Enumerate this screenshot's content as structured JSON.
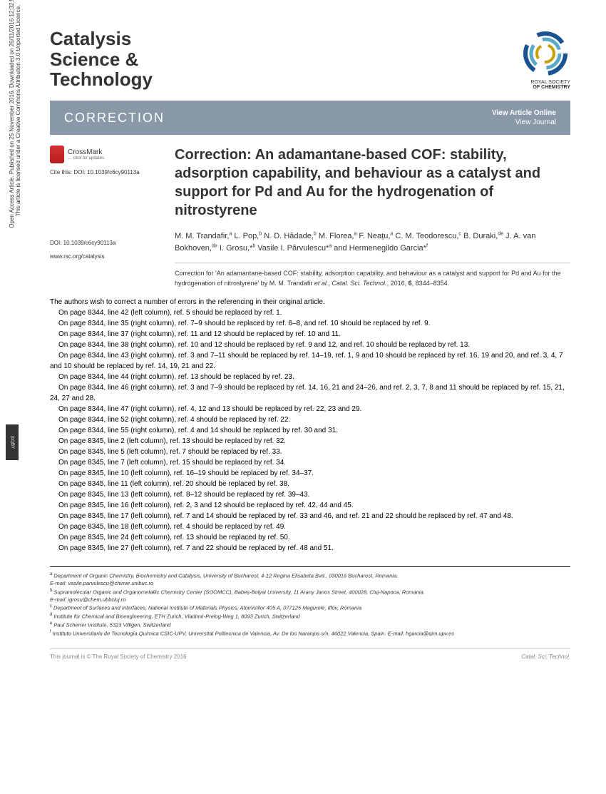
{
  "journal": {
    "title": "Catalysis\nScience &\nTechnology"
  },
  "logo": {
    "line1": "ROYAL SOCIETY",
    "line2": "OF CHEMISTRY"
  },
  "banner": {
    "label": "CORRECTION",
    "link1": "View Article Online",
    "link2": "View Journal"
  },
  "crossmark": {
    "label": "CrossMark",
    "sub": "← click for updates"
  },
  "leftcol": {
    "cite": "Cite this: DOI: 10.1039/c6cy90113a",
    "doi": "DOI: 10.1039/c6cy90113a",
    "website": "www.rsc.org/catalysis"
  },
  "article": {
    "title": "Correction: An adamantane-based COF: stability, adsorption capability, and behaviour as a catalyst and support for Pd and Au for the hydrogenation of nitrostyrene",
    "authors_html": "M. M. Trandafir,<sup>a</sup> L. Pop,<sup>b</sup> N. D. Hădade,<sup>b</sup> M. Florea,<sup>a</sup> F. Neațu,<sup>a</sup> C. M. Teodorescu,<sup>c</sup> B. Duraki,<sup>de</sup> J. A. van Bokhoven,<sup>de</sup> I. Grosu,*<sup>b</sup> Vasile I. Pârvulescu*<sup>a</sup> and Hermenegildo Garcia*<sup>f</sup>",
    "correction_note": "Correction for 'An adamantane-based COF: stability, adsorption capability, and behaviour as a catalyst and support for Pd and Au for the hydrogenation of nitrostyrene' by M. M. Trandafir <em>et al.</em>, <em>Catal. Sci. Technol.</em>, 2016, <b>6</b>, 8344–8354."
  },
  "body": [
    "The authors wish to correct a number of errors in the referencing in their original article.",
    "On page 8344, line 42 (left column), ref. 5 should be replaced by ref. 1.",
    "On page 8344, line 35 (right column), ref. 7–9 should be replaced by ref. 6–8, and ref. 10 should be replaced by ref. 9.",
    "On page 8344, line 37 (right column), ref. 11 and 12 should be replaced by ref. 10 and 11.",
    "On page 8344, line 38 (right column), ref. 10 and 12 should be replaced by ref. 9 and 12, and ref. 10 should be replaced by ref. 13.",
    "On page 8344, line 43 (right column), ref. 3 and 7–11 should be replaced by ref. 14–19, ref. 1, 9 and 10 should be replaced by ref. 16, 19 and 20, and ref. 3, 4, 7 and 10 should be replaced by ref. 14, 19, 21 and 22.",
    "On page 8344, line 44 (right column), ref. 13 should be replaced by ref. 23.",
    "On page 8344, line 46 (right column), ref. 3 and 7–9 should be replaced by ref. 14, 16, 21 and 24–26, and ref. 2, 3, 7, 8 and 11 should be replaced by ref. 15, 21, 24, 27 and 28.",
    "On page 8344, line 47 (right column), ref. 4, 12 and 13 should be replaced by ref. 22, 23 and 29.",
    "On page 8344, line 52 (right column), ref. 4 should be replaced by ref. 22.",
    "On page 8344, line 55 (right column), ref. 4 and 14 should be replaced by ref. 30 and 31.",
    "On page 8345, line 2 (left column), ref. 13 should be replaced by ref. 32.",
    "On page 8345, line 5 (left column), ref. 7 should be replaced by ref. 33.",
    "On page 8345, line 7 (left column), ref. 15 should be replaced by ref. 34.",
    "On page 8345, line 10 (left column), ref. 16–19 should be replaced by ref. 34–37.",
    "On page 8345, line 11 (left column), ref. 20 should be replaced by ref. 38.",
    "On page 8345, line 13 (left column), ref. 8–12 should be replaced by ref. 39–43.",
    "On page 8345, line 16 (left column), ref. 2, 3 and 12 should be replaced by ref. 42, 44 and 45.",
    "On page 8345, line 17 (left column), ref. 7 and 14 should be replaced by ref. 33 and 46, and ref. 21 and 22 should be replaced by ref. 47 and 48.",
    "On page 8345, line 18 (left column), ref. 4 should be replaced by ref. 49.",
    "On page 8345, line 24 (left column), ref. 13 should be replaced by ref. 50.",
    "On page 8345, line 27 (left column), ref. 7 and 22 should be replaced by ref. 48 and 51."
  ],
  "affiliations": [
    {
      "sup": "a",
      "text": "Department of Organic Chemistry, Biochemistry and Catalysis, University of Bucharest, 4-12 Regina Elisabeta Bvd., 030016 Bucharest, Romania."
    },
    {
      "sup": "",
      "text": "E-mail: vasile.parvulescu@chimie.unibuc.ro"
    },
    {
      "sup": "b",
      "text": "Supramolecular Organic and Organometallic Chemistry Center (SOOMCC), Babeș-Bolyai University, 11 Arany Janos Street, 400028, Cluj-Napoca, Romania."
    },
    {
      "sup": "",
      "text": "E-mail: igrosu@chem.ubbcluj.ro"
    },
    {
      "sup": "c",
      "text": "Department of Surfaces and Interfaces, National Institute of Materials Physics, Atomistilor 405 A, 077125 Magurele, Ilfov, Romania"
    },
    {
      "sup": "d",
      "text": "Institute for Chemical and Bioengineering, ETH Zurich, Vladimir-Prelog-Weg 1, 8093 Zurich, Switzerland"
    },
    {
      "sup": "e",
      "text": "Paul Scherrer Institute, 5323 Villigen, Switzerland"
    },
    {
      "sup": "f",
      "text": "Instituto Universitario de Tecnología Química CSIC-UPV, Universitat Politecnica de Valencia, Av. De los Naranjos s/n, 46022 Valencia, Spain. E-mail: hgarcia@qim.upv.es"
    }
  ],
  "footer": {
    "left": "This journal is © The Royal Society of Chemistry 2016",
    "right": "Catal. Sci. Technol."
  },
  "sidebar": {
    "line1": "Open Access Article. Published on 25 November 2016. Downloaded on 26/11/2016 12:32:57.",
    "line2": "This article is licensed under a Creative Commons Attribution 3.0 Unported Licence."
  },
  "cc": "BY"
}
